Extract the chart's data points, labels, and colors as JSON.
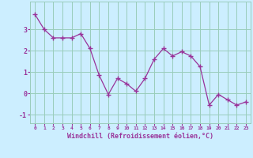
{
  "x": [
    0,
    1,
    2,
    3,
    4,
    5,
    6,
    7,
    8,
    9,
    10,
    11,
    12,
    13,
    14,
    15,
    16,
    17,
    18,
    19,
    20,
    21,
    22,
    23
  ],
  "y": [
    3.7,
    3.0,
    2.6,
    2.6,
    2.6,
    2.8,
    2.1,
    0.85,
    -0.05,
    0.7,
    0.45,
    0.1,
    0.7,
    1.6,
    2.1,
    1.75,
    1.95,
    1.75,
    1.25,
    -0.55,
    -0.05,
    -0.3,
    -0.55,
    -0.4
  ],
  "xlabel": "Windchill (Refroidissement éolien,°C)",
  "xlim": [
    -0.5,
    23.5
  ],
  "ylim": [
    -1.4,
    4.3
  ],
  "yticks": [
    -1,
    0,
    1,
    2,
    3
  ],
  "xticks": [
    0,
    1,
    2,
    3,
    4,
    5,
    6,
    7,
    8,
    9,
    10,
    11,
    12,
    13,
    14,
    15,
    16,
    17,
    18,
    19,
    20,
    21,
    22,
    23
  ],
  "line_color": "#993399",
  "marker": "+",
  "bg_color": "#cceeff",
  "grid_color": "#99ccbb",
  "font_color": "#993399"
}
